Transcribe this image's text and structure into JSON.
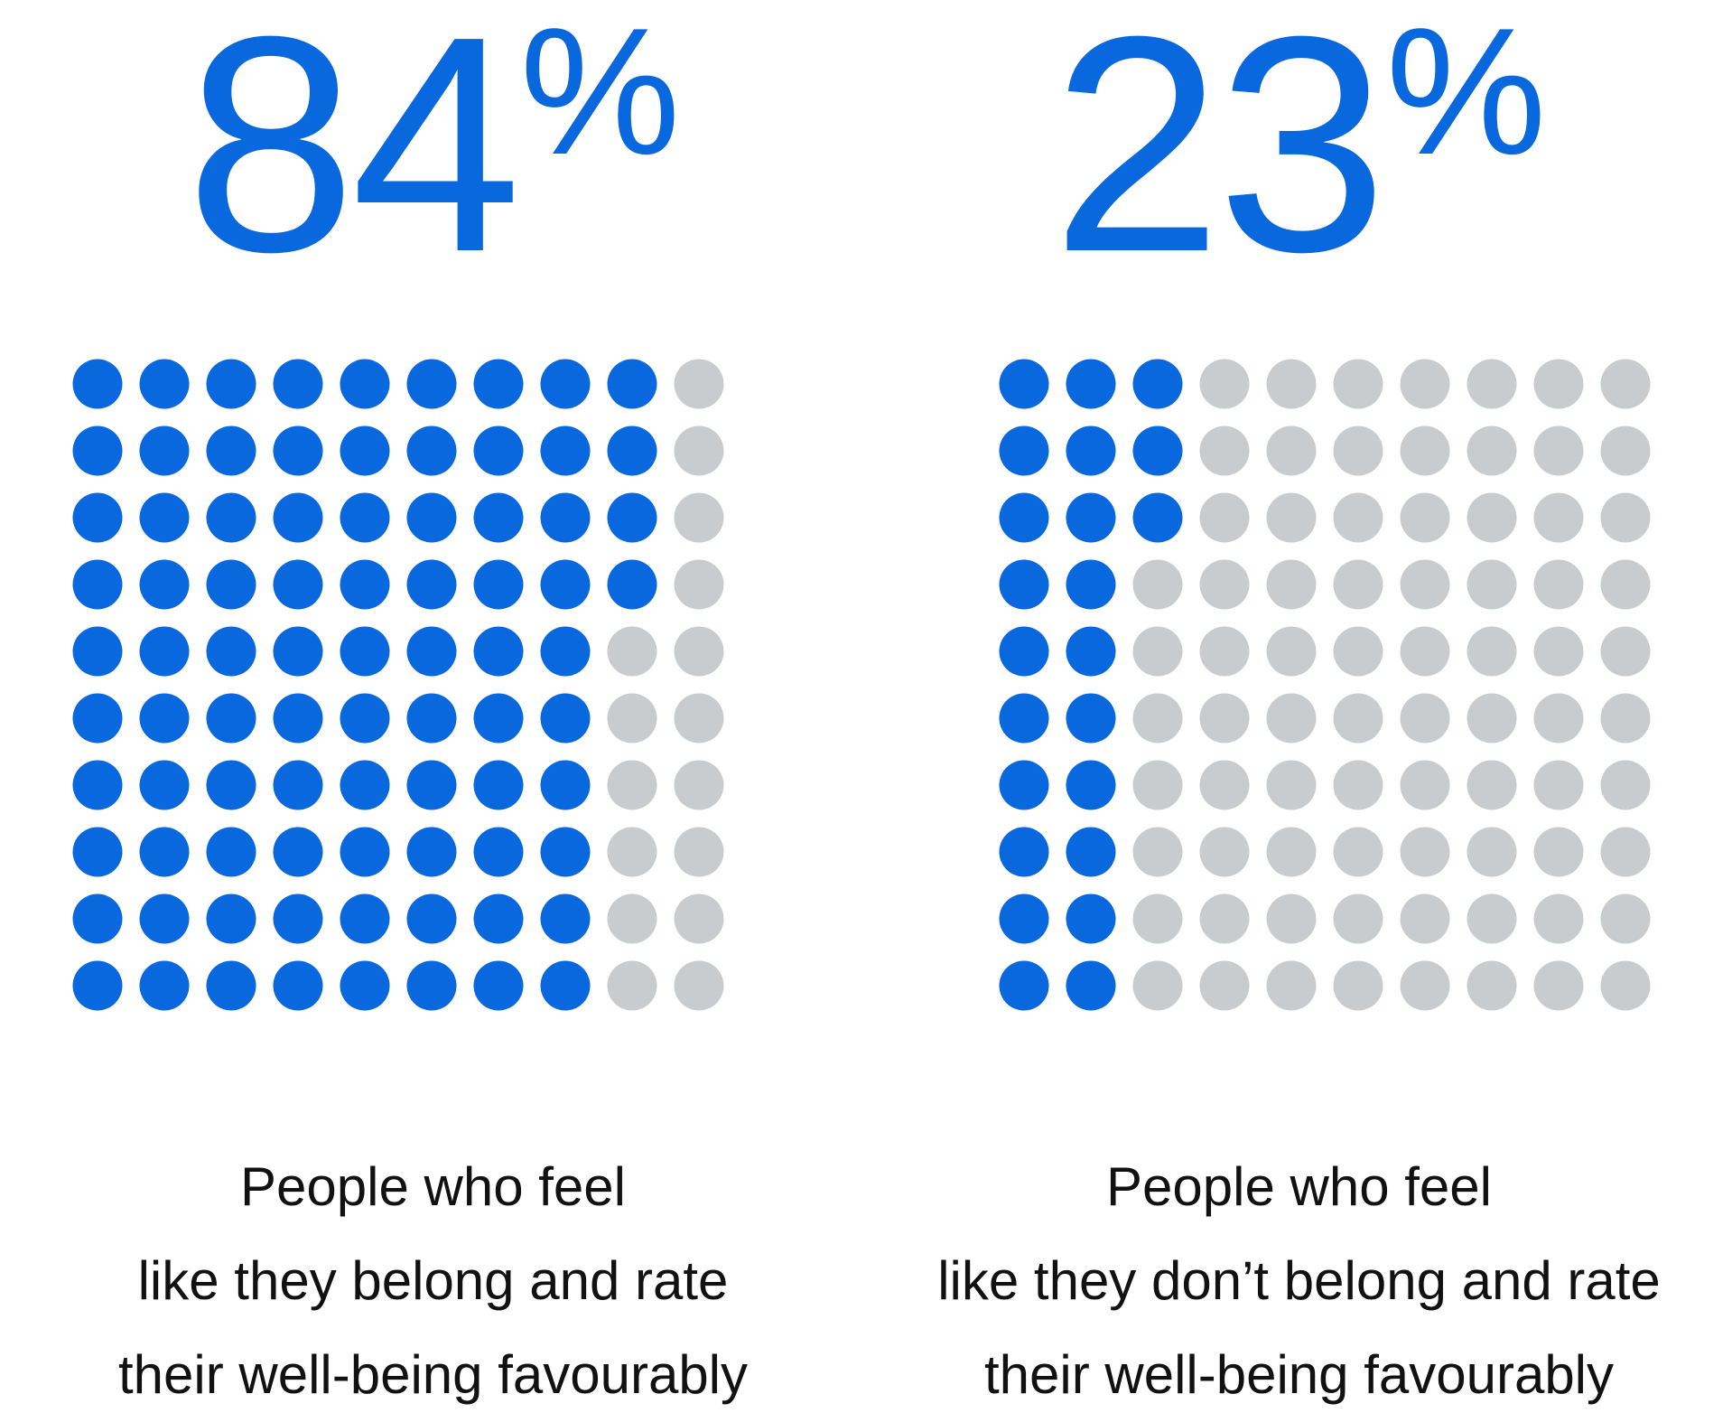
{
  "colors": {
    "filled": "#0A68DE",
    "empty": "#C9CCCF",
    "text": "#111111",
    "accent": "#0A68DE"
  },
  "chart_data": [
    {
      "type": "waffle",
      "value": 84,
      "total": 100,
      "rows": 10,
      "cols": 10,
      "fill_order": "column-major",
      "stat_number": "84",
      "stat_unit": "%",
      "caption_lines": [
        "People who feel",
        "like they belong and rate",
        "their well-being favourably"
      ]
    },
    {
      "type": "waffle",
      "value": 23,
      "total": 100,
      "rows": 10,
      "cols": 10,
      "fill_order": "column-major",
      "stat_number": "23",
      "stat_unit": "%",
      "caption_lines": [
        "People who feel",
        "like they don’t belong and rate",
        "their well-being favourably"
      ]
    }
  ]
}
